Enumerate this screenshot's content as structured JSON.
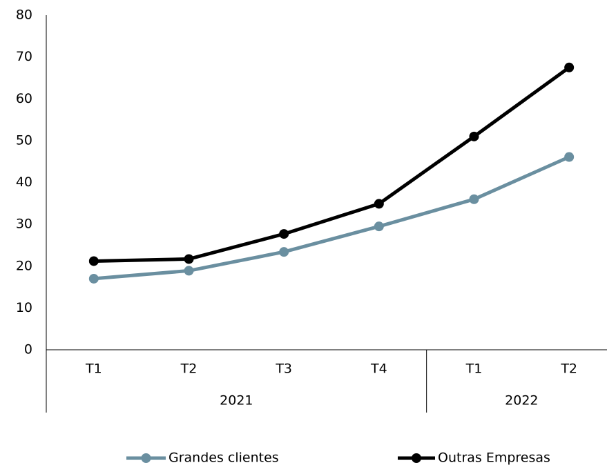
{
  "chart_data": {
    "type": "line",
    "title": "",
    "xlabel": "",
    "ylabel": "",
    "ylim": [
      0,
      80
    ],
    "y_ticks": [
      0,
      10,
      20,
      30,
      40,
      50,
      60,
      70,
      80
    ],
    "grid": false,
    "legend_position": "bottom",
    "categories": [
      "T1",
      "T2",
      "T3",
      "T4",
      "T1",
      "T2"
    ],
    "groups": [
      {
        "label": "2021",
        "span": 4
      },
      {
        "label": "2022",
        "span": 2
      }
    ],
    "series": [
      {
        "name": "Grandes clientes",
        "color": "#6A8FA0",
        "values": [
          17.0,
          18.9,
          23.4,
          29.5,
          36.0,
          46.1
        ]
      },
      {
        "name": "Outras Empresas",
        "color": "#000000",
        "values": [
          21.2,
          21.7,
          27.7,
          34.9,
          51.0,
          67.5
        ]
      }
    ]
  }
}
